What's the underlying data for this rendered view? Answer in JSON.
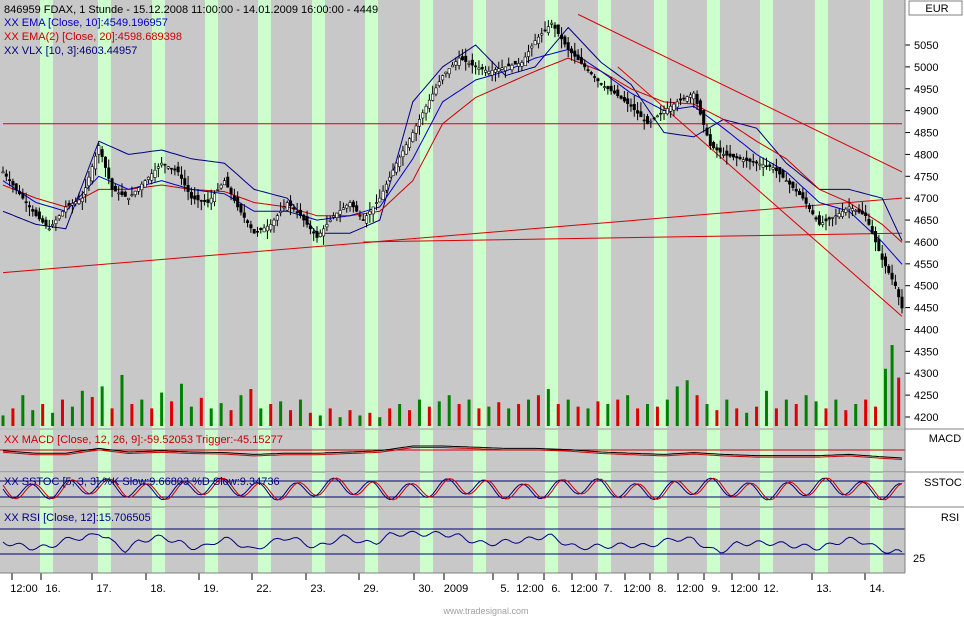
{
  "header": {
    "title": "846959  FDAX, 1 Stunde - 15.12.2008 11:00:00 - 14.01.2009 16:00:00 - 4449",
    "indicators": [
      {
        "text": "XX EMA [Close, 10]:4549.196957",
        "color": "#0000cc"
      },
      {
        "text": "XX EMA(2) [Close, 20]:4598.689398",
        "color": "#cc0000"
      },
      {
        "text": "XX VLX [10, 3]:4603.44957",
        "color": "#000080"
      }
    ]
  },
  "colors": {
    "background": "#c8c8c8",
    "highlight_band": "#ccffcc",
    "candle": "#000000",
    "ema10": "#0000cc",
    "ema20": "#cc0000",
    "vlx": "#000080",
    "trendline": "#dd0000",
    "volume_up": "#008000",
    "volume_down": "#dd0000"
  },
  "main_panel": {
    "currency_label": "EUR",
    "y_ticks": [
      4200,
      4250,
      4300,
      4350,
      4400,
      4450,
      4500,
      4550,
      4600,
      4650,
      4700,
      4750,
      4800,
      4850,
      4900,
      4950,
      5000,
      5050
    ]
  },
  "macd_panel": {
    "title": "XX MACD [Close, 12, 26, 9]:-59.52053  Trigger:-45.15277",
    "label": "MACD"
  },
  "sstoc_panel": {
    "title": "XX SSTOC [5, 3, 3]  %K Slow:9.66803  %D Slow:9.34736",
    "label": "SSTOC"
  },
  "rsi_panel": {
    "title": "XX RSI [Close, 12]:15.706505",
    "label": "RSI",
    "tick": "25"
  },
  "x_axis": {
    "labels": [
      "12:00",
      "16.",
      "17.",
      "18.",
      "19.",
      "22.",
      "23.",
      "29.",
      "30.",
      "2009",
      "5.",
      "12:00",
      "6.",
      "12:00",
      "7.",
      "12:00",
      "8.",
      "12:00",
      "9.",
      "12:00",
      "12.",
      "13.",
      "14."
    ]
  },
  "footer": {
    "watermark": "www.tradesignal.com"
  },
  "chart_data": {
    "type": "candlestick",
    "symbol": "FDAX",
    "interval": "1 Stunde",
    "range": "15.12.2008 11:00:00 - 14.01.2009 16:00:00",
    "last": 4449,
    "ylim": [
      4200,
      5100
    ],
    "series": [
      {
        "name": "EMA [Close, 10]",
        "last": 4549.196957
      },
      {
        "name": "EMA(2) [Close, 20]",
        "last": 4598.689398
      },
      {
        "name": "VLX [10, 3]",
        "last": 4603.44957
      }
    ],
    "price_path": [
      [
        0,
        4760
      ],
      [
        5,
        4710
      ],
      [
        10,
        4660
      ],
      [
        14,
        4630
      ],
      [
        19,
        4680
      ],
      [
        24,
        4700
      ],
      [
        29,
        4820
      ],
      [
        33,
        4720
      ],
      [
        38,
        4700
      ],
      [
        43,
        4740
      ],
      [
        48,
        4780
      ],
      [
        53,
        4760
      ],
      [
        57,
        4700
      ],
      [
        62,
        4690
      ],
      [
        67,
        4740
      ],
      [
        71,
        4680
      ],
      [
        76,
        4620
      ],
      [
        81,
        4640
      ],
      [
        86,
        4690
      ],
      [
        90,
        4660
      ],
      [
        95,
        4610
      ],
      [
        100,
        4660
      ],
      [
        105,
        4690
      ],
      [
        109,
        4650
      ],
      [
        114,
        4700
      ],
      [
        119,
        4780
      ],
      [
        124,
        4850
      ],
      [
        128,
        4910
      ],
      [
        133,
        4980
      ],
      [
        138,
        5020
      ],
      [
        143,
        5000
      ],
      [
        147,
        4990
      ],
      [
        152,
        5000
      ],
      [
        157,
        5010
      ],
      [
        161,
        5060
      ],
      [
        166,
        5100
      ],
      [
        171,
        5040
      ],
      [
        176,
        5000
      ],
      [
        181,
        4960
      ],
      [
        185,
        4940
      ],
      [
        190,
        4910
      ],
      [
        195,
        4870
      ],
      [
        200,
        4900
      ],
      [
        204,
        4920
      ],
      [
        209,
        4940
      ],
      [
        214,
        4820
      ],
      [
        218,
        4800
      ],
      [
        223,
        4790
      ],
      [
        228,
        4780
      ],
      [
        233,
        4770
      ],
      [
        237,
        4740
      ],
      [
        242,
        4700
      ],
      [
        247,
        4640
      ],
      [
        252,
        4660
      ],
      [
        256,
        4680
      ],
      [
        261,
        4660
      ],
      [
        266,
        4560
      ],
      [
        270,
        4500
      ],
      [
        272,
        4449
      ]
    ],
    "ema10_path": [
      [
        0,
        4740
      ],
      [
        10,
        4690
      ],
      [
        19,
        4670
      ],
      [
        29,
        4750
      ],
      [
        38,
        4720
      ],
      [
        48,
        4740
      ],
      [
        57,
        4720
      ],
      [
        67,
        4710
      ],
      [
        76,
        4670
      ],
      [
        86,
        4670
      ],
      [
        95,
        4650
      ],
      [
        105,
        4660
      ],
      [
        114,
        4680
      ],
      [
        124,
        4790
      ],
      [
        133,
        4920
      ],
      [
        143,
        4970
      ],
      [
        152,
        4990
      ],
      [
        161,
        5020
      ],
      [
        171,
        5040
      ],
      [
        181,
        4990
      ],
      [
        190,
        4940
      ],
      [
        200,
        4900
      ],
      [
        209,
        4910
      ],
      [
        218,
        4860
      ],
      [
        228,
        4800
      ],
      [
        237,
        4760
      ],
      [
        247,
        4690
      ],
      [
        256,
        4670
      ],
      [
        266,
        4600
      ],
      [
        272,
        4549
      ]
    ],
    "ema20_path": [
      [
        0,
        4730
      ],
      [
        10,
        4700
      ],
      [
        19,
        4680
      ],
      [
        29,
        4720
      ],
      [
        38,
        4720
      ],
      [
        48,
        4730
      ],
      [
        57,
        4720
      ],
      [
        67,
        4715
      ],
      [
        76,
        4690
      ],
      [
        86,
        4680
      ],
      [
        95,
        4660
      ],
      [
        105,
        4660
      ],
      [
        114,
        4670
      ],
      [
        124,
        4740
      ],
      [
        133,
        4870
      ],
      [
        143,
        4930
      ],
      [
        152,
        4960
      ],
      [
        161,
        4990
      ],
      [
        171,
        5020
      ],
      [
        181,
        4990
      ],
      [
        190,
        4950
      ],
      [
        200,
        4920
      ],
      [
        209,
        4915
      ],
      [
        218,
        4880
      ],
      [
        228,
        4830
      ],
      [
        237,
        4790
      ],
      [
        247,
        4720
      ],
      [
        256,
        4690
      ],
      [
        266,
        4640
      ],
      [
        272,
        4599
      ]
    ],
    "vlx_path": [
      [
        0,
        4670
      ],
      [
        10,
        4640
      ],
      [
        19,
        4630
      ],
      [
        29,
        4830
      ],
      [
        38,
        4800
      ],
      [
        48,
        4810
      ],
      [
        57,
        4790
      ],
      [
        67,
        4780
      ],
      [
        76,
        4720
      ],
      [
        86,
        4700
      ],
      [
        95,
        4620
      ],
      [
        105,
        4620
      ],
      [
        114,
        4650
      ],
      [
        124,
        4920
      ],
      [
        133,
        5000
      ],
      [
        143,
        5050
      ],
      [
        152,
        4980
      ],
      [
        161,
        5000
      ],
      [
        171,
        5090
      ],
      [
        181,
        5010
      ],
      [
        190,
        4960
      ],
      [
        200,
        4850
      ],
      [
        209,
        4840
      ],
      [
        218,
        4880
      ],
      [
        228,
        4860
      ],
      [
        237,
        4780
      ],
      [
        247,
        4720
      ],
      [
        256,
        4720
      ],
      [
        266,
        4700
      ],
      [
        272,
        4603
      ]
    ],
    "trendlines": [
      {
        "from": [
          0,
          4870
        ],
        "to": [
          272,
          4870
        ]
      },
      {
        "from": [
          0,
          4530
        ],
        "to": [
          272,
          4700
        ]
      },
      {
        "from": [
          109,
          4600
        ],
        "to": [
          272,
          4620
        ]
      },
      {
        "from": [
          174,
          5120
        ],
        "to": [
          272,
          4760
        ]
      },
      {
        "from": [
          186,
          5000
        ],
        "to": [
          272,
          4430
        ]
      }
    ],
    "volume": [
      [
        0,
        0.12,
        1
      ],
      [
        3,
        0.2,
        0
      ],
      [
        6,
        0.35,
        1
      ],
      [
        9,
        0.18,
        1
      ],
      [
        12,
        0.25,
        0
      ],
      [
        15,
        0.15,
        1
      ],
      [
        18,
        0.3,
        0
      ],
      [
        21,
        0.22,
        1
      ],
      [
        24,
        0.4,
        1
      ],
      [
        27,
        0.33,
        0
      ],
      [
        30,
        0.45,
        1
      ],
      [
        33,
        0.2,
        0
      ],
      [
        36,
        0.58,
        1
      ],
      [
        39,
        0.25,
        0
      ],
      [
        42,
        0.3,
        1
      ],
      [
        45,
        0.2,
        0
      ],
      [
        48,
        0.38,
        1
      ],
      [
        51,
        0.28,
        0
      ],
      [
        54,
        0.48,
        1
      ],
      [
        57,
        0.22,
        1
      ],
      [
        60,
        0.32,
        0
      ],
      [
        63,
        0.2,
        1
      ],
      [
        66,
        0.26,
        1
      ],
      [
        69,
        0.18,
        0
      ],
      [
        72,
        0.35,
        1
      ],
      [
        75,
        0.42,
        0
      ],
      [
        78,
        0.2,
        1
      ],
      [
        81,
        0.25,
        0
      ],
      [
        84,
        0.28,
        1
      ],
      [
        87,
        0.18,
        0
      ],
      [
        90,
        0.3,
        1
      ],
      [
        93,
        0.15,
        0
      ],
      [
        96,
        0.12,
        1
      ],
      [
        99,
        0.2,
        0
      ],
      [
        102,
        0.1,
        1
      ],
      [
        105,
        0.18,
        0
      ],
      [
        108,
        0.12,
        1
      ],
      [
        111,
        0.15,
        0
      ],
      [
        114,
        0.1,
        1
      ],
      [
        117,
        0.2,
        0
      ],
      [
        120,
        0.25,
        1
      ],
      [
        123,
        0.18,
        0
      ],
      [
        126,
        0.3,
        1
      ],
      [
        129,
        0.22,
        0
      ],
      [
        132,
        0.28,
        1
      ],
      [
        135,
        0.35,
        1
      ],
      [
        138,
        0.25,
        0
      ],
      [
        141,
        0.3,
        1
      ],
      [
        144,
        0.2,
        0
      ],
      [
        147,
        0.22,
        1
      ],
      [
        150,
        0.27,
        0
      ],
      [
        153,
        0.2,
        1
      ],
      [
        156,
        0.25,
        0
      ],
      [
        159,
        0.3,
        1
      ],
      [
        162,
        0.35,
        0
      ],
      [
        165,
        0.42,
        1
      ],
      [
        168,
        0.25,
        0
      ],
      [
        171,
        0.3,
        1
      ],
      [
        174,
        0.22,
        0
      ],
      [
        177,
        0.2,
        1
      ],
      [
        180,
        0.28,
        0
      ],
      [
        183,
        0.25,
        1
      ],
      [
        186,
        0.3,
        0
      ],
      [
        189,
        0.35,
        1
      ],
      [
        192,
        0.2,
        0
      ],
      [
        195,
        0.25,
        1
      ],
      [
        198,
        0.22,
        0
      ],
      [
        201,
        0.3,
        1
      ],
      [
        204,
        0.45,
        1
      ],
      [
        207,
        0.52,
        1
      ],
      [
        210,
        0.35,
        0
      ],
      [
        213,
        0.25,
        1
      ],
      [
        216,
        0.18,
        0
      ],
      [
        219,
        0.3,
        1
      ],
      [
        222,
        0.2,
        0
      ],
      [
        225,
        0.15,
        1
      ],
      [
        228,
        0.22,
        0
      ],
      [
        231,
        0.4,
        1
      ],
      [
        234,
        0.2,
        0
      ],
      [
        237,
        0.3,
        1
      ],
      [
        240,
        0.25,
        0
      ],
      [
        243,
        0.35,
        1
      ],
      [
        246,
        0.28,
        1
      ],
      [
        249,
        0.2,
        0
      ],
      [
        252,
        0.3,
        1
      ],
      [
        255,
        0.18,
        0
      ],
      [
        258,
        0.25,
        1
      ],
      [
        261,
        0.3,
        0
      ],
      [
        264,
        0.22,
        0
      ],
      [
        267,
        0.65,
        1
      ],
      [
        269,
        0.92,
        1
      ],
      [
        271,
        0.55,
        0
      ]
    ]
  }
}
